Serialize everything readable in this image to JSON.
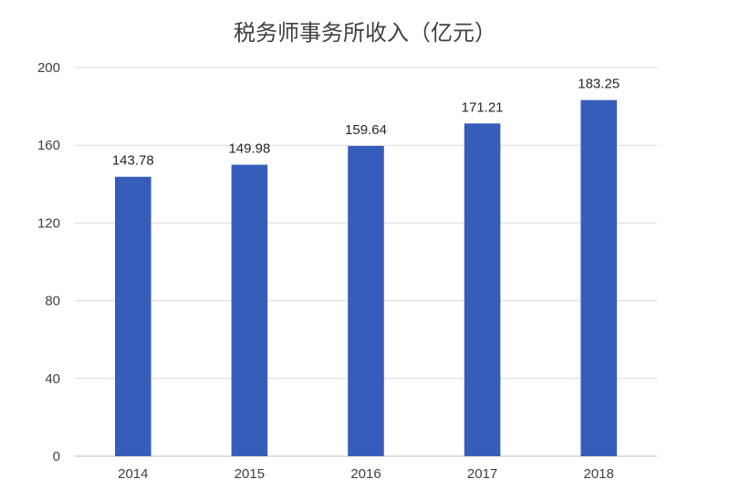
{
  "chart_data": {
    "type": "bar",
    "title": "税务师事务所收入（亿元）",
    "categories": [
      "2014",
      "2015",
      "2016",
      "2017",
      "2018"
    ],
    "values": [
      143.78,
      149.98,
      159.64,
      171.21,
      183.25
    ],
    "data_labels": [
      "143.78",
      "149.98",
      "159.64",
      "171.21",
      "183.25"
    ],
    "ylim": [
      0,
      200
    ],
    "yticks": [
      0,
      40,
      80,
      120,
      160,
      200
    ],
    "xlabel": "",
    "ylabel": "",
    "grid": true,
    "legend": "none",
    "bar_color": "#365dba"
  }
}
